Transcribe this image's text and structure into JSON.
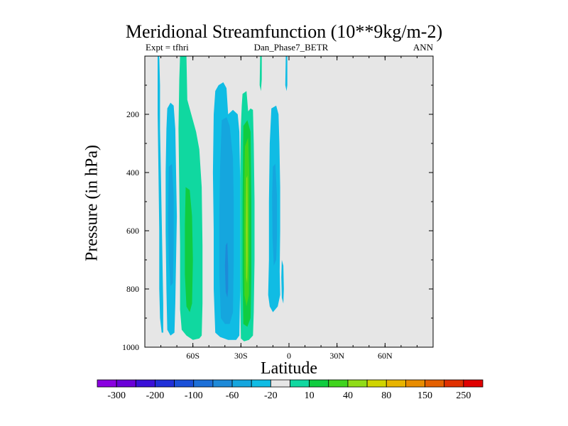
{
  "chart_data": {
    "type": "heatmap",
    "title": "Meridional Streamfunction (10**9kg/m-2)",
    "left_label": "Expt = tfhri",
    "center_label": "Dan_Phase7_BETR",
    "right_label": "ANN",
    "xlabel": "Latitude",
    "ylabel": "Pressure (in hPa)",
    "xlim": [
      -90,
      90
    ],
    "ylim": [
      1000,
      0
    ],
    "x_ticks": [
      {
        "value": -60,
        "label": "60S"
      },
      {
        "value": -30,
        "label": "30S"
      },
      {
        "value": 0,
        "label": "0"
      },
      {
        "value": 30,
        "label": "30N"
      },
      {
        "value": 60,
        "label": "60N"
      }
    ],
    "y_ticks": [
      {
        "value": 200,
        "label": "200"
      },
      {
        "value": 400,
        "label": "400"
      },
      {
        "value": 600,
        "label": "600"
      },
      {
        "value": 800,
        "label": "800"
      },
      {
        "value": 1000,
        "label": "1000"
      }
    ],
    "background_color": "#e6e6e6",
    "color_levels": [
      {
        "label": "-300",
        "color": "#8a00e0"
      },
      {
        "label": "",
        "color": "#6a00d8"
      },
      {
        "label": "-200",
        "color": "#3a10d8"
      },
      {
        "label": "",
        "color": "#2030d8"
      },
      {
        "label": "-100",
        "color": "#1a50d8"
      },
      {
        "label": "",
        "color": "#1d70d8"
      },
      {
        "label": "-60",
        "color": "#1e8ad8"
      },
      {
        "label": "",
        "color": "#15a6de"
      },
      {
        "label": "-20",
        "color": "#10bce4"
      },
      {
        "label": "",
        "color": "#e6e6e6"
      },
      {
        "label": "10",
        "color": "#10d8a0"
      },
      {
        "label": "",
        "color": "#10cc40"
      },
      {
        "label": "40",
        "color": "#40d41e"
      },
      {
        "label": "",
        "color": "#90dc18"
      },
      {
        "label": "80",
        "color": "#d0d400"
      },
      {
        "label": "",
        "color": "#e8b400"
      },
      {
        "label": "150",
        "color": "#e88c00"
      },
      {
        "label": "",
        "color": "#e46000"
      },
      {
        "label": "250",
        "color": "#e03000"
      },
      {
        "label": "",
        "color": "#e00000"
      }
    ],
    "contour_regions": [
      {
        "level": 8,
        "name": "south-polar-thin-cell",
        "points": [
          [
            -82,
            0
          ],
          [
            -81,
            0
          ],
          [
            -80.5,
            100
          ],
          [
            -80.5,
            250
          ],
          [
            -80,
            400
          ],
          [
            -79.5,
            550
          ],
          [
            -79,
            700
          ],
          [
            -78.5,
            850
          ],
          [
            -78.5,
            950
          ],
          [
            -79.5,
            950
          ],
          [
            -80.5,
            900
          ],
          [
            -81,
            800
          ],
          [
            -81,
            600
          ],
          [
            -81.5,
            400
          ],
          [
            -82,
            200
          ]
        ]
      },
      {
        "level": 8,
        "name": "south-mid-negative-cell",
        "points": [
          [
            -76,
            180
          ],
          [
            -74,
            160
          ],
          [
            -72,
            170
          ],
          [
            -71,
            250
          ],
          [
            -70.5,
            400
          ],
          [
            -70,
            550
          ],
          [
            -70.5,
            700
          ],
          [
            -71,
            850
          ],
          [
            -71.5,
            950
          ],
          [
            -74,
            960
          ],
          [
            -76,
            940
          ],
          [
            -76.5,
            800
          ],
          [
            -77,
            600
          ],
          [
            -77,
            400
          ],
          [
            -76.5,
            250
          ]
        ]
      },
      {
        "level": 7,
        "name": "south-mid-negative-core",
        "points": [
          [
            -75,
            380
          ],
          [
            -73,
            370
          ],
          [
            -72,
            480
          ],
          [
            -72,
            650
          ],
          [
            -72.5,
            780
          ],
          [
            -74,
            790
          ],
          [
            -75,
            700
          ],
          [
            -75.5,
            550
          ]
        ]
      },
      {
        "level": 10,
        "name": "ferrel-cell-outer",
        "points": [
          [
            -68,
            0
          ],
          [
            -64,
            0
          ],
          [
            -63.5,
            150
          ],
          [
            -61,
            200
          ],
          [
            -58,
            260
          ],
          [
            -56,
            320
          ],
          [
            -54.5,
            450
          ],
          [
            -54,
            650
          ],
          [
            -54,
            850
          ],
          [
            -54.5,
            960
          ],
          [
            -56,
            970
          ],
          [
            -60,
            975
          ],
          [
            -64,
            960
          ],
          [
            -67,
            940
          ],
          [
            -68,
            870
          ],
          [
            -68,
            650
          ],
          [
            -68.5,
            450
          ],
          [
            -69,
            250
          ],
          [
            -68.5,
            80
          ]
        ]
      },
      {
        "level": 11,
        "name": "ferrel-cell-core",
        "points": [
          [
            -64.5,
            450
          ],
          [
            -62,
            460
          ],
          [
            -60.5,
            550
          ],
          [
            -60,
            700
          ],
          [
            -60.5,
            850
          ],
          [
            -62,
            880
          ],
          [
            -64,
            860
          ],
          [
            -65,
            750
          ],
          [
            -65,
            580
          ]
        ]
      },
      {
        "level": 8,
        "name": "south-hadley-outer",
        "points": [
          [
            -44,
            100
          ],
          [
            -41,
            90
          ],
          [
            -39,
            110
          ],
          [
            -38,
            200
          ],
          [
            -35,
            185
          ],
          [
            -32,
            200
          ],
          [
            -31,
            260
          ],
          [
            -30.5,
            420
          ],
          [
            -30.5,
            600
          ],
          [
            -30.5,
            800
          ],
          [
            -31,
            960
          ],
          [
            -33,
            975
          ],
          [
            -38,
            975
          ],
          [
            -43,
            965
          ],
          [
            -46,
            950
          ],
          [
            -47,
            800
          ],
          [
            -47,
            600
          ],
          [
            -47.5,
            400
          ],
          [
            -47,
            200
          ],
          [
            -46,
            120
          ]
        ]
      },
      {
        "level": 7,
        "name": "south-hadley-middle",
        "points": [
          [
            -42,
            220
          ],
          [
            -39,
            210
          ],
          [
            -37,
            240
          ],
          [
            -35,
            350
          ],
          [
            -34.5,
            500
          ],
          [
            -34.5,
            700
          ],
          [
            -35,
            880
          ],
          [
            -37,
            920
          ],
          [
            -40,
            920
          ],
          [
            -42.5,
            900
          ],
          [
            -43.5,
            750
          ],
          [
            -43.5,
            550
          ],
          [
            -43,
            380
          ]
        ]
      },
      {
        "level": 6,
        "name": "south-hadley-core",
        "points": [
          [
            -39.5,
            650
          ],
          [
            -38.5,
            640
          ],
          [
            -38,
            720
          ],
          [
            -38,
            800
          ],
          [
            -38.5,
            830
          ],
          [
            -39.5,
            810
          ],
          [
            -40,
            720
          ]
        ]
      },
      {
        "level": 10,
        "name": "north-hadley-outer",
        "points": [
          [
            -29,
            130
          ],
          [
            -26.5,
            120
          ],
          [
            -25.5,
            190
          ],
          [
            -24,
            180
          ],
          [
            -22.5,
            185
          ],
          [
            -22,
            300
          ],
          [
            -21.5,
            500
          ],
          [
            -21.5,
            700
          ],
          [
            -22,
            880
          ],
          [
            -22.5,
            960
          ],
          [
            -25,
            975
          ],
          [
            -28,
            980
          ],
          [
            -30,
            970
          ],
          [
            -30.5,
            800
          ],
          [
            -30.5,
            600
          ],
          [
            -30.5,
            420
          ],
          [
            -30,
            240
          ],
          [
            -29.5,
            170
          ]
        ]
      },
      {
        "level": 11,
        "name": "north-hadley-middle",
        "points": [
          [
            -28.5,
            240
          ],
          [
            -26,
            220
          ],
          [
            -24,
            260
          ],
          [
            -23.5,
            500
          ],
          [
            -23.5,
            750
          ],
          [
            -24,
            900
          ],
          [
            -26,
            930
          ],
          [
            -28.5,
            920
          ],
          [
            -29,
            750
          ],
          [
            -29,
            500
          ]
        ]
      },
      {
        "level": 12,
        "name": "north-hadley-inner",
        "points": [
          [
            -27.5,
            310
          ],
          [
            -25.5,
            280
          ],
          [
            -24.8,
            400
          ],
          [
            -24.8,
            650
          ],
          [
            -25,
            820
          ],
          [
            -26.5,
            860
          ],
          [
            -27.8,
            820
          ],
          [
            -28,
            600
          ],
          [
            -27.8,
            420
          ]
        ]
      },
      {
        "level": 13,
        "name": "north-hadley-core",
        "points": [
          [
            -26.6,
            420
          ],
          [
            -26,
            410
          ],
          [
            -25.8,
            550
          ],
          [
            -25.8,
            700
          ],
          [
            -26.1,
            780
          ],
          [
            -26.7,
            760
          ],
          [
            -26.9,
            600
          ]
        ]
      },
      {
        "level": 10,
        "name": "north-upper-thin-cell",
        "points": [
          [
            -18,
            0
          ],
          [
            -17,
            0
          ],
          [
            -17,
            80
          ],
          [
            -17.5,
            120
          ],
          [
            -18.3,
            100
          ]
        ]
      },
      {
        "level": 8,
        "name": "north-mid-negative-outer",
        "points": [
          [
            -11,
            180
          ],
          [
            -8,
            170
          ],
          [
            -6.5,
            200
          ],
          [
            -6,
            300
          ],
          [
            -5.5,
            450
          ],
          [
            -5.5,
            600
          ],
          [
            -5.8,
            740
          ],
          [
            -5.5,
            820
          ],
          [
            -7,
            860
          ],
          [
            -10,
            880
          ],
          [
            -12,
            860
          ],
          [
            -13,
            820
          ],
          [
            -12.5,
            700
          ],
          [
            -12.5,
            500
          ],
          [
            -12,
            300
          ]
        ]
      },
      {
        "level": 7,
        "name": "north-mid-negative-core",
        "points": [
          [
            -10,
            380
          ],
          [
            -8.5,
            370
          ],
          [
            -7.5,
            480
          ],
          [
            -7.5,
            620
          ],
          [
            -8,
            700
          ],
          [
            -9.5,
            720
          ],
          [
            -10.3,
            620
          ],
          [
            -10.5,
            480
          ]
        ]
      },
      {
        "level": 8,
        "name": "north-polar-thin-cell",
        "points": [
          [
            -2,
            0
          ],
          [
            -1,
            0
          ],
          [
            -1,
            100
          ],
          [
            -1.5,
            120
          ],
          [
            -2.3,
            100
          ]
        ]
      },
      {
        "level": 8,
        "name": "north-polar-lower-cell",
        "points": [
          [
            -4.5,
            700
          ],
          [
            -3.5,
            720
          ],
          [
            -3.2,
            800
          ],
          [
            -3.5,
            850
          ],
          [
            -4.5,
            830
          ],
          [
            -4.8,
            760
          ]
        ]
      }
    ]
  }
}
